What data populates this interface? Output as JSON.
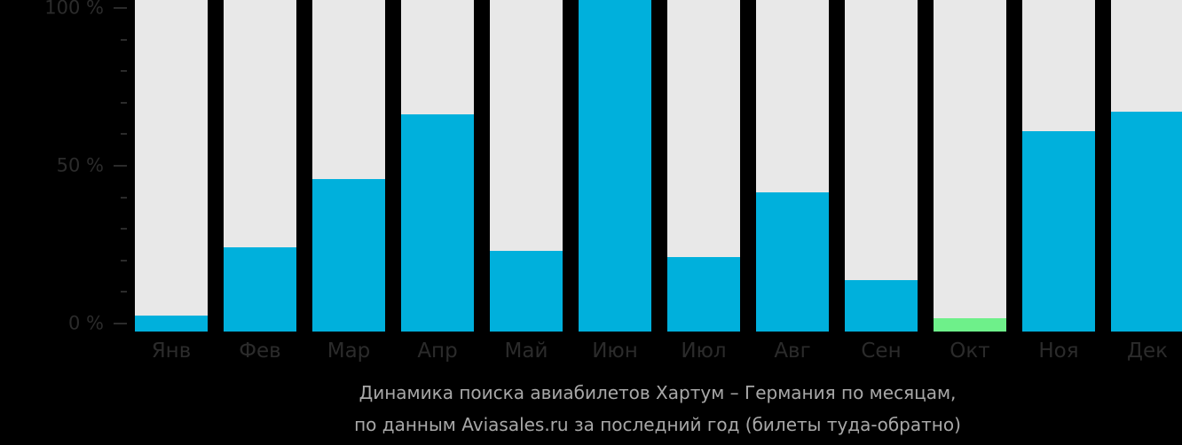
{
  "chart_data": {
    "type": "bar",
    "title": "Динамика поиска авиабилетов Хартум – Германия по месяцам, по данным Aviasales.ru за последний год (билеты туда-обратно)",
    "caption_lines": [
      "Динамика поиска авиабилетов Хартум – Германия по месяцам,",
      "по данным Aviasales.ru за последний год (билеты туда-обратно)"
    ],
    "xlabel": "",
    "ylabel": "",
    "ylim": [
      0,
      100
    ],
    "yticks": [
      "0 %",
      "50 %",
      "100 %"
    ],
    "grid": false,
    "legend": null,
    "categories": [
      "Янв",
      "Фев",
      "Мар",
      "Апр",
      "Май",
      "Июн",
      "Июл",
      "Авг",
      "Сен",
      "Окт",
      "Ноя",
      "Дек"
    ],
    "values": [
      5,
      26,
      47,
      67,
      25,
      100,
      23,
      43,
      16,
      4,
      62,
      68
    ],
    "colors": {
      "bar_fill": "#00b0dc",
      "bar_highlight_min": "#6ef08a",
      "bar_background": "#e8e8e8",
      "page_background": "#000000"
    },
    "highlighted_min_index": 9
  }
}
